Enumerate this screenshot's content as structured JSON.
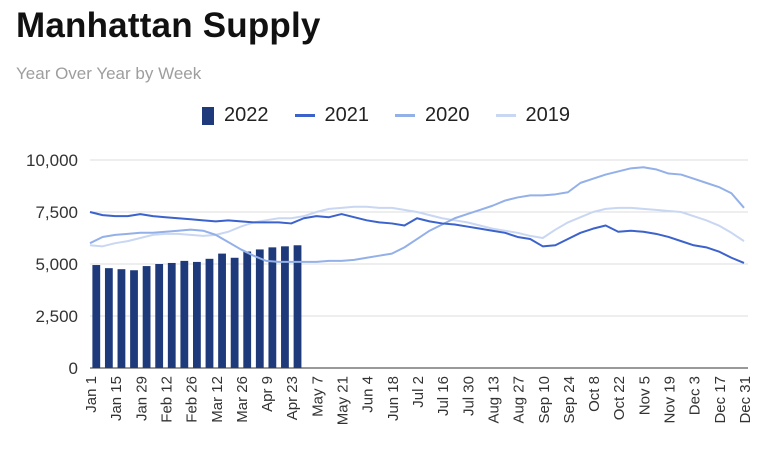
{
  "chart_data": {
    "type": "bar",
    "title": "Manhattan Supply",
    "subtitle": "Year Over Year by Week",
    "xlabel": "",
    "ylabel": "",
    "ylim": [
      0,
      10000
    ],
    "yticks": [
      0,
      2500,
      5000,
      7500,
      10000
    ],
    "ytick_labels": [
      "0",
      "2,500",
      "5,000",
      "7,500",
      "10,000"
    ],
    "x_labels": [
      "Jan 1",
      "Jan 15",
      "Jan 29",
      "Feb 12",
      "Feb 26",
      "Mar 12",
      "Mar 26",
      "Apr 9",
      "Apr 23",
      "May 7",
      "May 21",
      "Jun 4",
      "Jun 18",
      "Jul 2",
      "Jul 16",
      "Jul 30",
      "Aug 13",
      "Aug 27",
      "Sep 10",
      "Sep 24",
      "Oct 8",
      "Oct 22",
      "Nov 5",
      "Nov 19",
      "Dec 3",
      "Dec 17",
      "Dec 31"
    ],
    "num_weeks": 53,
    "legend": "top",
    "grid": true,
    "series": [
      {
        "name": "2022",
        "type": "bar",
        "color": "#1f3a7a",
        "values": [
          4950,
          4800,
          4750,
          4700,
          4900,
          5000,
          5050,
          5150,
          5100,
          5250,
          5500,
          5300,
          5600,
          5700,
          5800,
          5850,
          5900
        ]
      },
      {
        "name": "2021",
        "type": "line",
        "color": "#3c62cc",
        "values": [
          7500,
          7350,
          7300,
          7300,
          7400,
          7300,
          7250,
          7200,
          7150,
          7100,
          7050,
          7100,
          7050,
          7000,
          7000,
          7000,
          6950,
          7200,
          7300,
          7250,
          7400,
          7250,
          7100,
          7000,
          6950,
          6850,
          7200,
          7050,
          6950,
          6900,
          6800,
          6700,
          6600,
          6500,
          6300,
          6200,
          5850,
          5900,
          6200,
          6500,
          6700,
          6850,
          6550,
          6600,
          6550,
          6450,
          6300,
          6100,
          5900,
          5800,
          5600,
          5300,
          5050
        ]
      },
      {
        "name": "2020",
        "type": "line",
        "color": "#93b0e8",
        "values": [
          6000,
          6300,
          6400,
          6450,
          6500,
          6500,
          6550,
          6600,
          6650,
          6600,
          6400,
          6050,
          5700,
          5400,
          5150,
          5100,
          5100,
          5100,
          5100,
          5150,
          5150,
          5200,
          5300,
          5400,
          5500,
          5800,
          6200,
          6600,
          6900,
          7200,
          7400,
          7600,
          7800,
          8050,
          8200,
          8300,
          8300,
          8350,
          8450,
          8900,
          9100,
          9300,
          9450,
          9600,
          9650,
          9550,
          9350,
          9300,
          9100,
          8900,
          8700,
          8400,
          7700
        ]
      },
      {
        "name": "2019",
        "type": "line",
        "color": "#c9d7f2",
        "values": [
          5900,
          5850,
          6000,
          6100,
          6250,
          6400,
          6450,
          6450,
          6400,
          6350,
          6400,
          6550,
          6800,
          7000,
          7100,
          7200,
          7200,
          7300,
          7500,
          7650,
          7700,
          7750,
          7750,
          7700,
          7700,
          7600,
          7500,
          7350,
          7200,
          7100,
          7000,
          6850,
          6700,
          6600,
          6500,
          6350,
          6250,
          6650,
          7000,
          7250,
          7500,
          7650,
          7700,
          7700,
          7650,
          7600,
          7550,
          7500,
          7300,
          7100,
          6850,
          6500,
          6100
        ]
      }
    ]
  }
}
